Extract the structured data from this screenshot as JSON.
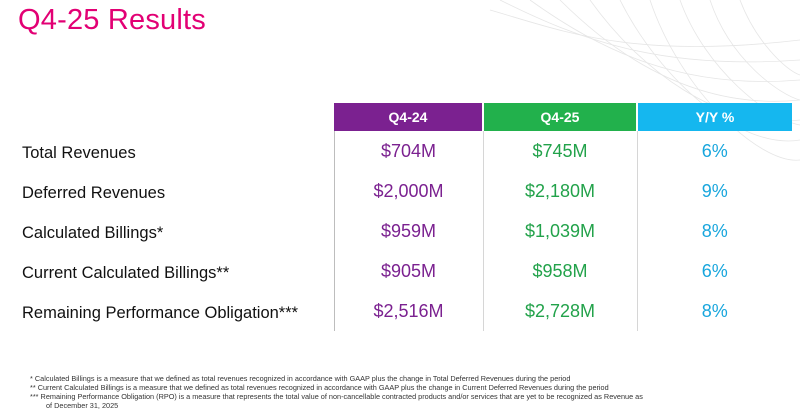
{
  "title": "Q4-25 Results",
  "table": {
    "columns": [
      "Q4-24",
      "Q4-25",
      "Y/Y %"
    ],
    "rows": [
      {
        "label": "Total Revenues",
        "q4_24": "$704M",
        "q4_25": "$745M",
        "yy": "6%"
      },
      {
        "label": "Deferred Revenues",
        "q4_24": "$2,000M",
        "q4_25": "$2,180M",
        "yy": "9%"
      },
      {
        "label": "Calculated Billings*",
        "q4_24": "$959M",
        "q4_25": "$1,039M",
        "yy": "8%"
      },
      {
        "label": "Current Calculated Billings**",
        "q4_24": "$905M",
        "q4_25": "$958M",
        "yy": "6%"
      },
      {
        "label": "Remaining Performance Obligation***",
        "q4_24": "$2,516M",
        "q4_25": "$2,728M",
        "yy": "8%"
      }
    ]
  },
  "footnotes": [
    "* Calculated Billings is a measure that we defined as total revenues recognized in accordance with GAAP plus the change in Total Deferred Revenues during the period",
    "** Current Calculated Billings is a measure that we defined as total revenues recognized in accordance with GAAP plus the change in Current Deferred Revenues during the period",
    "*** Remaining Performance Obligation (RPO) is a measure that represents the total value of non-cancellable contracted products and/or services that are yet to be recognized as Revenue as",
    "of December 31, 2025"
  ],
  "colors": {
    "title": "#e20074",
    "q4_24": "#7b2190",
    "q4_25": "#22b14c",
    "yy": "#15b7ef"
  }
}
